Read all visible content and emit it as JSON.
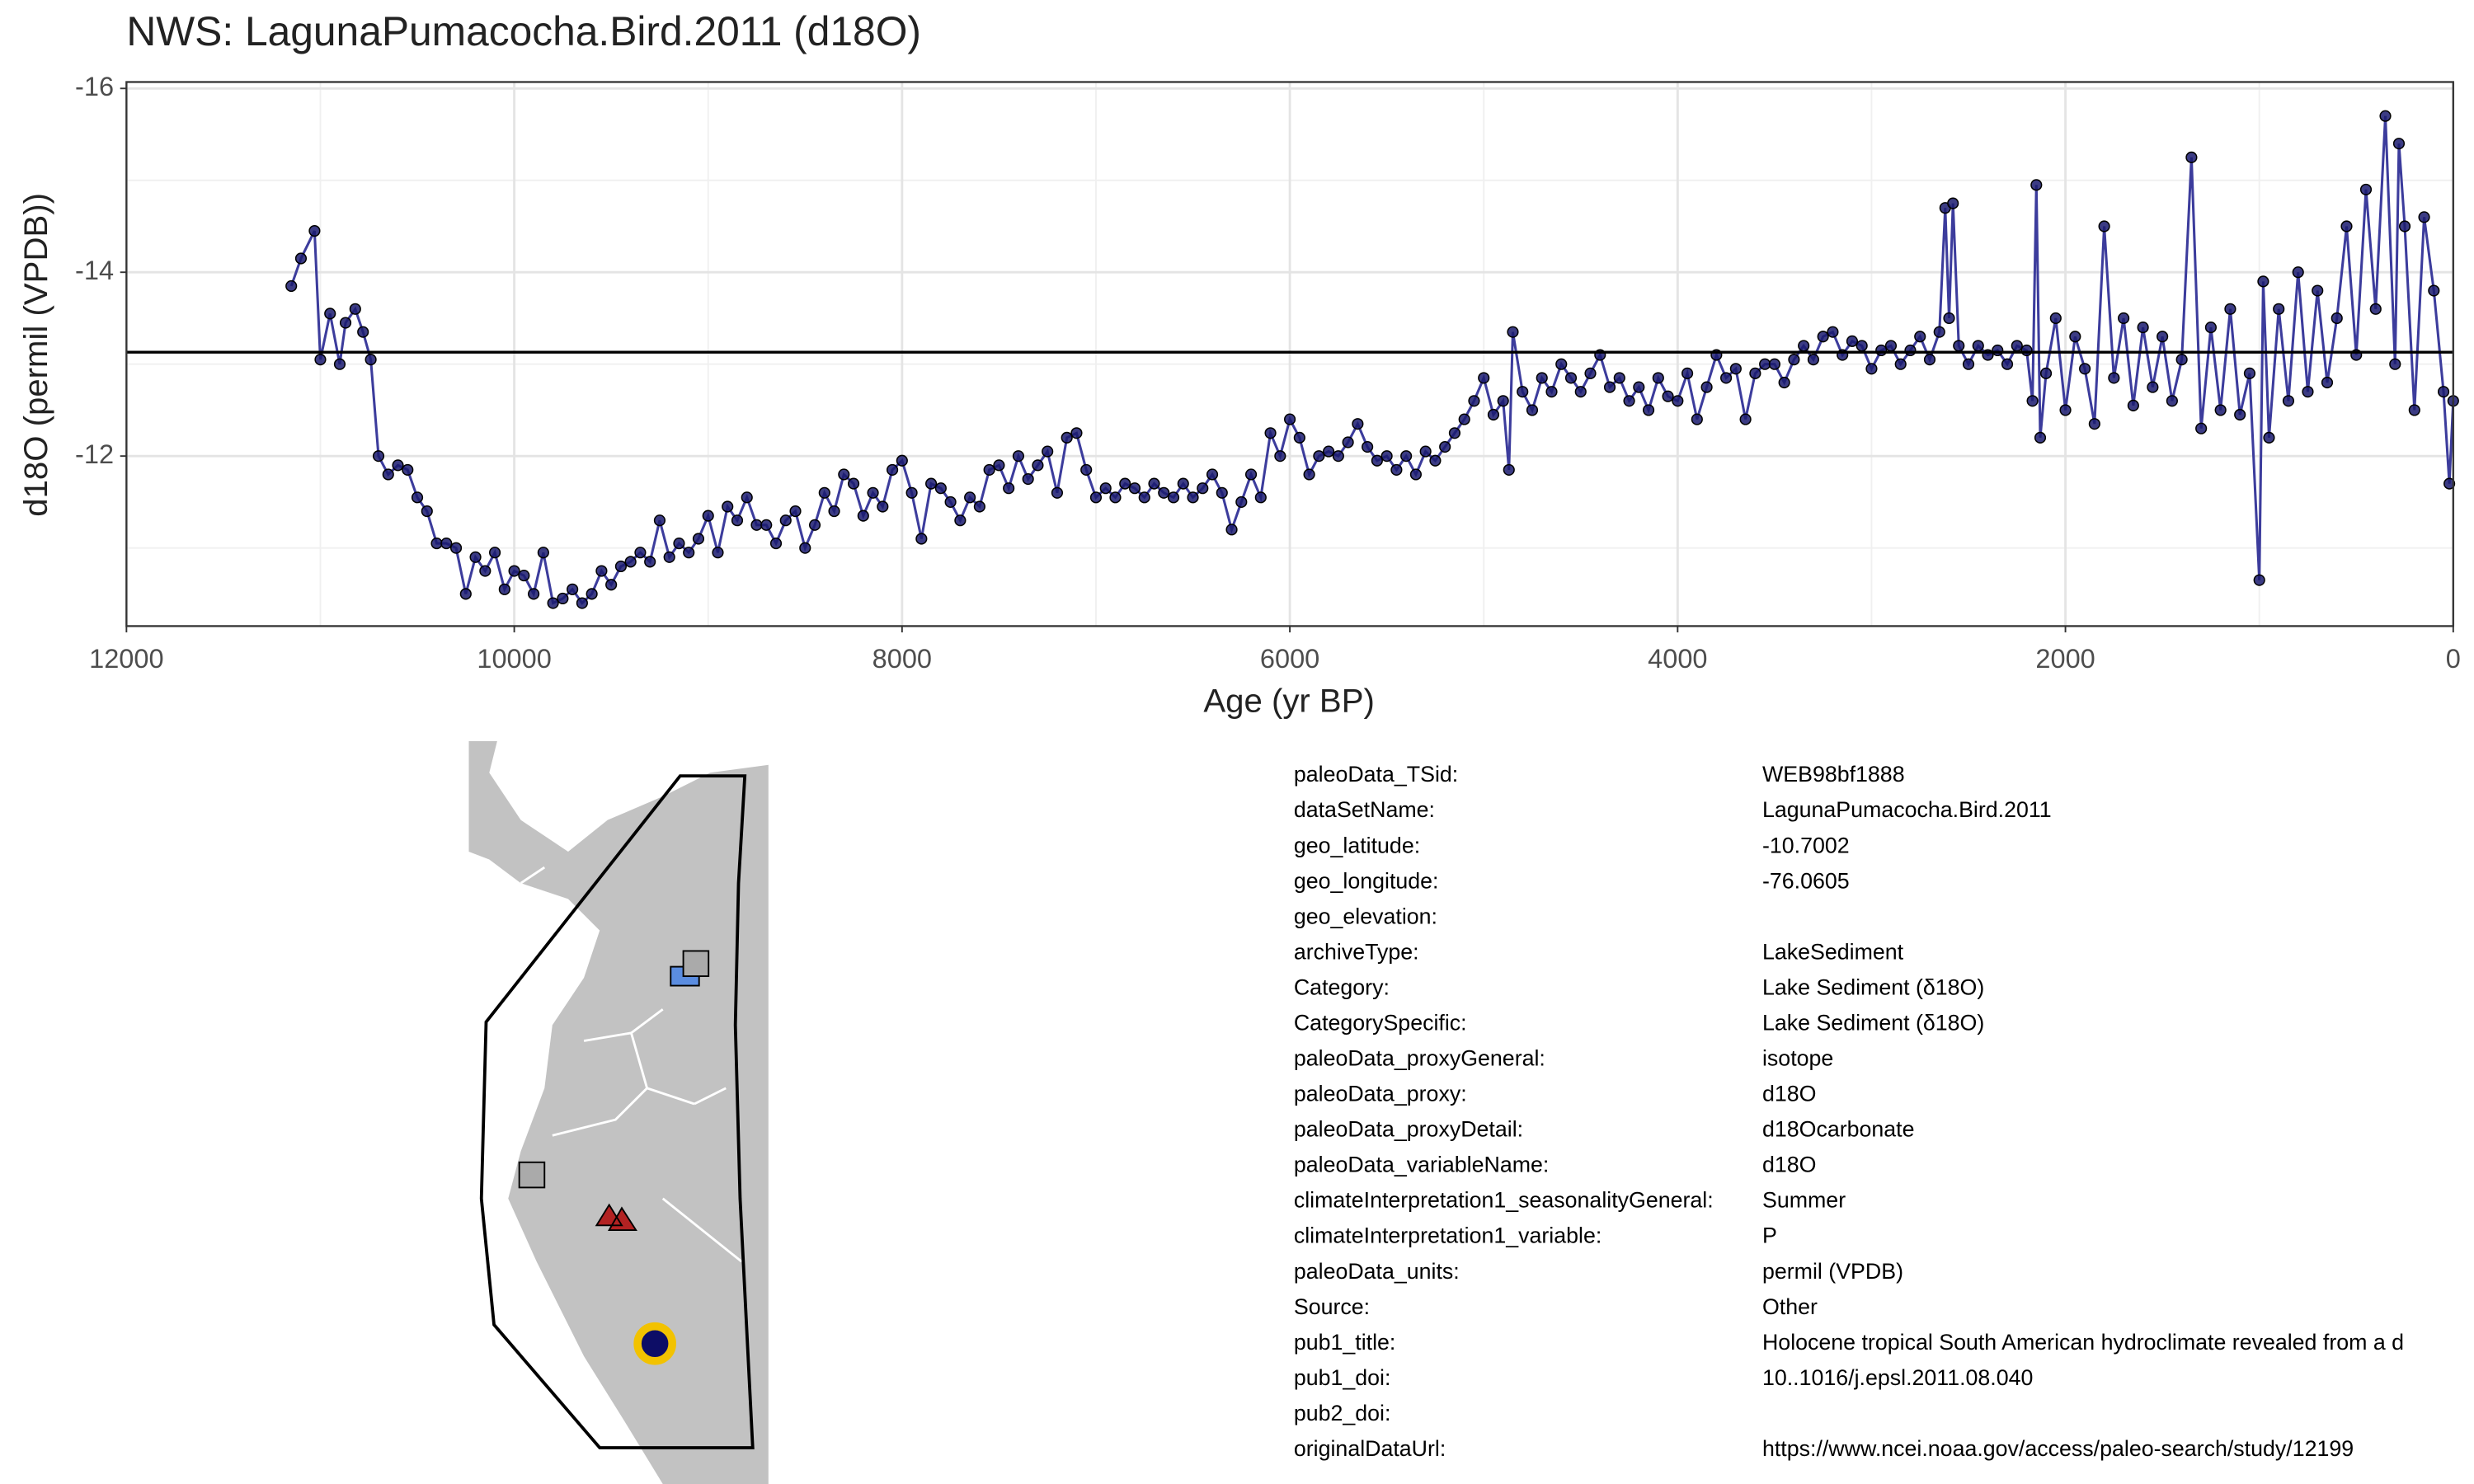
{
  "chart_data": {
    "type": "line",
    "title": "NWS: LagunaPumacocha.Bird.2011 (d18O)",
    "xlabel": "Age (yr BP)",
    "ylabel": "d18O (permil (VPDB))",
    "xlim": [
      12000,
      0
    ],
    "xticks": [
      12000,
      10000,
      8000,
      6000,
      4000,
      2000,
      0
    ],
    "ylim": [
      -10.15,
      -16.07
    ],
    "yticks": [
      -16,
      -14,
      -12
    ],
    "grid": true,
    "hline": -13.13,
    "x": [
      11150,
      11100,
      11030,
      11000,
      10950,
      10900,
      10870,
      10820,
      10780,
      10740,
      10700,
      10650,
      10600,
      10550,
      10500,
      10450,
      10400,
      10350,
      10300,
      10250,
      10200,
      10150,
      10100,
      10050,
      10000,
      9950,
      9900,
      9850,
      9800,
      9750,
      9700,
      9650,
      9600,
      9550,
      9500,
      9450,
      9400,
      9350,
      9300,
      9250,
      9200,
      9150,
      9100,
      9050,
      9000,
      8950,
      8900,
      8850,
      8800,
      8750,
      8700,
      8650,
      8600,
      8550,
      8500,
      8450,
      8400,
      8350,
      8300,
      8250,
      8200,
      8150,
      8100,
      8050,
      8000,
      7950,
      7900,
      7850,
      7800,
      7750,
      7700,
      7650,
      7600,
      7550,
      7500,
      7450,
      7400,
      7350,
      7300,
      7250,
      7200,
      7150,
      7100,
      7050,
      7000,
      6950,
      6900,
      6850,
      6800,
      6750,
      6700,
      6650,
      6600,
      6550,
      6500,
      6450,
      6400,
      6350,
      6300,
      6250,
      6200,
      6150,
      6100,
      6050,
      6000,
      5950,
      5900,
      5850,
      5800,
      5750,
      5700,
      5650,
      5600,
      5550,
      5500,
      5450,
      5400,
      5350,
      5300,
      5250,
      5200,
      5150,
      5100,
      5050,
      5000,
      4950,
      4900,
      4870,
      4850,
      4800,
      4750,
      4700,
      4650,
      4600,
      4550,
      4500,
      4450,
      4400,
      4350,
      4300,
      4250,
      4200,
      4150,
      4100,
      4050,
      4000,
      3950,
      3900,
      3850,
      3800,
      3750,
      3700,
      3650,
      3600,
      3550,
      3500,
      3450,
      3400,
      3350,
      3300,
      3250,
      3200,
      3150,
      3100,
      3050,
      3000,
      2950,
      2900,
      2850,
      2800,
      2750,
      2700,
      2650,
      2620,
      2600,
      2580,
      2550,
      2500,
      2450,
      2400,
      2350,
      2300,
      2250,
      2200,
      2170,
      2150,
      2130,
      2100,
      2050,
      2000,
      1950,
      1900,
      1850,
      1800,
      1750,
      1700,
      1650,
      1600,
      1550,
      1500,
      1450,
      1400,
      1350,
      1300,
      1250,
      1200,
      1150,
      1100,
      1050,
      1000,
      980,
      950,
      900,
      850,
      800,
      750,
      700,
      650,
      600,
      550,
      500,
      450,
      400,
      350,
      300,
      280,
      250,
      200,
      150,
      100,
      50,
      20,
      0
    ],
    "series": [
      {
        "color": "#1a1a6e",
        "line_color": "#3c3c9c",
        "values": [
          -13.85,
          -14.15,
          -14.45,
          -13.05,
          -13.55,
          -13.0,
          -13.45,
          -13.6,
          -13.35,
          -13.05,
          -12.0,
          -11.8,
          -11.9,
          -11.85,
          -11.55,
          -11.4,
          -11.05,
          -11.05,
          -11.0,
          -10.5,
          -10.9,
          -10.75,
          -10.95,
          -10.55,
          -10.75,
          -10.7,
          -10.5,
          -10.95,
          -10.4,
          -10.45,
          -10.55,
          -10.4,
          -10.5,
          -10.75,
          -10.6,
          -10.8,
          -10.85,
          -10.95,
          -10.85,
          -11.3,
          -10.9,
          -11.05,
          -10.95,
          -11.1,
          -11.35,
          -10.95,
          -11.45,
          -11.3,
          -11.55,
          -11.25,
          -11.25,
          -11.05,
          -11.3,
          -11.4,
          -11.0,
          -11.25,
          -11.6,
          -11.4,
          -11.8,
          -11.7,
          -11.35,
          -11.6,
          -11.45,
          -11.85,
          -11.95,
          -11.6,
          -11.1,
          -11.7,
          -11.65,
          -11.5,
          -11.3,
          -11.55,
          -11.45,
          -11.85,
          -11.9,
          -11.65,
          -12.0,
          -11.75,
          -11.9,
          -12.05,
          -11.6,
          -12.2,
          -12.25,
          -11.85,
          -11.55,
          -11.65,
          -11.55,
          -11.7,
          -11.65,
          -11.55,
          -11.7,
          -11.6,
          -11.55,
          -11.7,
          -11.55,
          -11.65,
          -11.8,
          -11.6,
          -11.2,
          -11.5,
          -11.8,
          -11.55,
          -12.25,
          -12.0,
          -12.4,
          -12.2,
          -11.8,
          -12.0,
          -12.05,
          -12.0,
          -12.15,
          -12.35,
          -12.1,
          -11.95,
          -12.0,
          -11.85,
          -12.0,
          -11.8,
          -12.05,
          -11.95,
          -12.1,
          -12.25,
          -12.4,
          -12.6,
          -12.85,
          -12.45,
          -12.6,
          -11.85,
          -13.35,
          -12.7,
          -12.5,
          -12.85,
          -12.7,
          -13.0,
          -12.85,
          -12.7,
          -12.9,
          -13.1,
          -12.75,
          -12.85,
          -12.6,
          -12.75,
          -12.5,
          -12.85,
          -12.65,
          -12.6,
          -12.9,
          -12.4,
          -12.75,
          -13.1,
          -12.85,
          -12.95,
          -12.4,
          -12.9,
          -13.0,
          -13.0,
          -12.8,
          -13.05,
          -13.2,
          -13.05,
          -13.3,
          -13.35,
          -13.1,
          -13.25,
          -13.2,
          -12.95,
          -13.15,
          -13.2,
          -13.0,
          -13.15,
          -13.3,
          -13.05,
          -13.35,
          -14.7,
          -13.5,
          -14.75,
          -13.2,
          -13.0,
          -13.2,
          -13.1,
          -13.15,
          -13.0,
          -13.2,
          -13.15,
          -12.6,
          -14.95,
          -12.2,
          -12.9,
          -13.5,
          -12.5,
          -13.3,
          -12.95,
          -12.35,
          -14.5,
          -12.85,
          -13.5,
          -12.55,
          -13.4,
          -12.75,
          -13.3,
          -12.6,
          -13.05,
          -15.25,
          -12.3,
          -13.4,
          -12.5,
          -13.6,
          -12.45,
          -12.9,
          -10.65,
          -13.9,
          -12.2,
          -13.6,
          -12.6,
          -14.0,
          -12.7,
          -13.8,
          -12.8,
          -13.5,
          -14.5,
          -13.1,
          -14.9,
          -13.6,
          -15.7,
          -13.0,
          -15.4,
          -14.5,
          -12.5,
          -14.6,
          -13.8,
          -12.7,
          -11.7,
          -12.6
        ]
      }
    ]
  },
  "table": {
    "rows": [
      {
        "key": "paleoData_TSid:",
        "value": "WEB98bf1888"
      },
      {
        "key": "dataSetName:",
        "value": "LagunaPumacocha.Bird.2011"
      },
      {
        "key": "geo_latitude:",
        "value": "-10.7002"
      },
      {
        "key": "geo_longitude:",
        "value": "-76.0605"
      },
      {
        "key": "geo_elevation:"
      },
      {
        "key": "archiveType:",
        "value": "LakeSediment"
      },
      {
        "key": "Category:",
        "value": "Lake Sediment (δ18O)"
      },
      {
        "key": "CategorySpecific:",
        "value": "Lake Sediment (δ18O)"
      },
      {
        "key": "paleoData_proxyGeneral:",
        "value": "isotope"
      },
      {
        "key": "paleoData_proxy:",
        "value": "d18O"
      },
      {
        "key": "paleoData_proxyDetail:",
        "value": "d18Ocarbonate"
      },
      {
        "key": "paleoData_variableName:",
        "value": "d18O"
      },
      {
        "key": "climateInterpretation1_seasonalityGeneral:",
        "value": "Summer"
      },
      {
        "key": "climateInterpretation1_variable:",
        "value": "P"
      },
      {
        "key": "paleoData_units:",
        "value": "permil (VPDB)"
      },
      {
        "key": "Source:",
        "value": "Other"
      },
      {
        "key": "pub1_title:",
        "value": "Holocene tropical South American hydroclimate revealed from a d"
      },
      {
        "key": "pub1_doi:",
        "value": "10..1016/j.epsl.2011.08.040"
      },
      {
        "key": "pub2_doi:"
      },
      {
        "key": "originalDataUrl:",
        "value": "https://www.ncei.noaa.gov/access/paleo-search/study/12199"
      }
    ]
  }
}
